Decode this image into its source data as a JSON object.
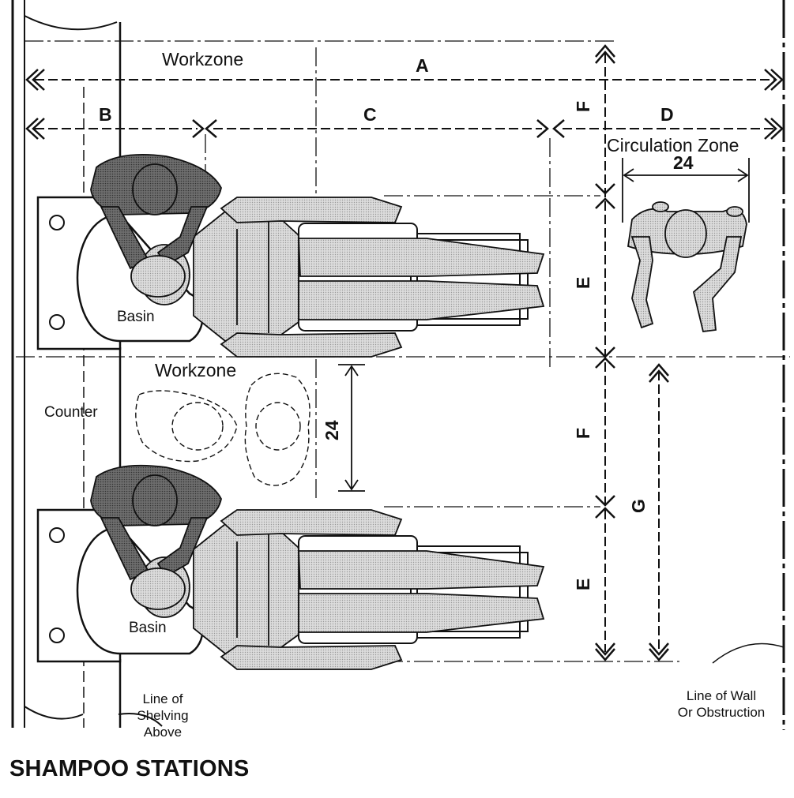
{
  "title": "SHAMPOO STATIONS",
  "labels": {
    "workzone_top": "Workzone",
    "workzone_mid": "Workzone",
    "circulation_zone": "Circulation Zone",
    "counter": "Counter",
    "basin_top": "Basin",
    "basin_bottom": "Basin",
    "shelving": [
      "Line of",
      "Shelving",
      "Above"
    ],
    "wall": [
      "Line of Wall",
      "Or Obstruction"
    ]
  },
  "dimensions": {
    "A": "A",
    "B": "B",
    "C": "C",
    "D": "D",
    "E_top": "E",
    "E_bottom": "E",
    "F_top": "F",
    "F_mid": "F",
    "G": "G",
    "circulation_width": "24",
    "workzone_gap": "24"
  },
  "colors": {
    "line": "#111111",
    "light_figure": "#d2d2d2",
    "dark_figure": "#616161"
  }
}
